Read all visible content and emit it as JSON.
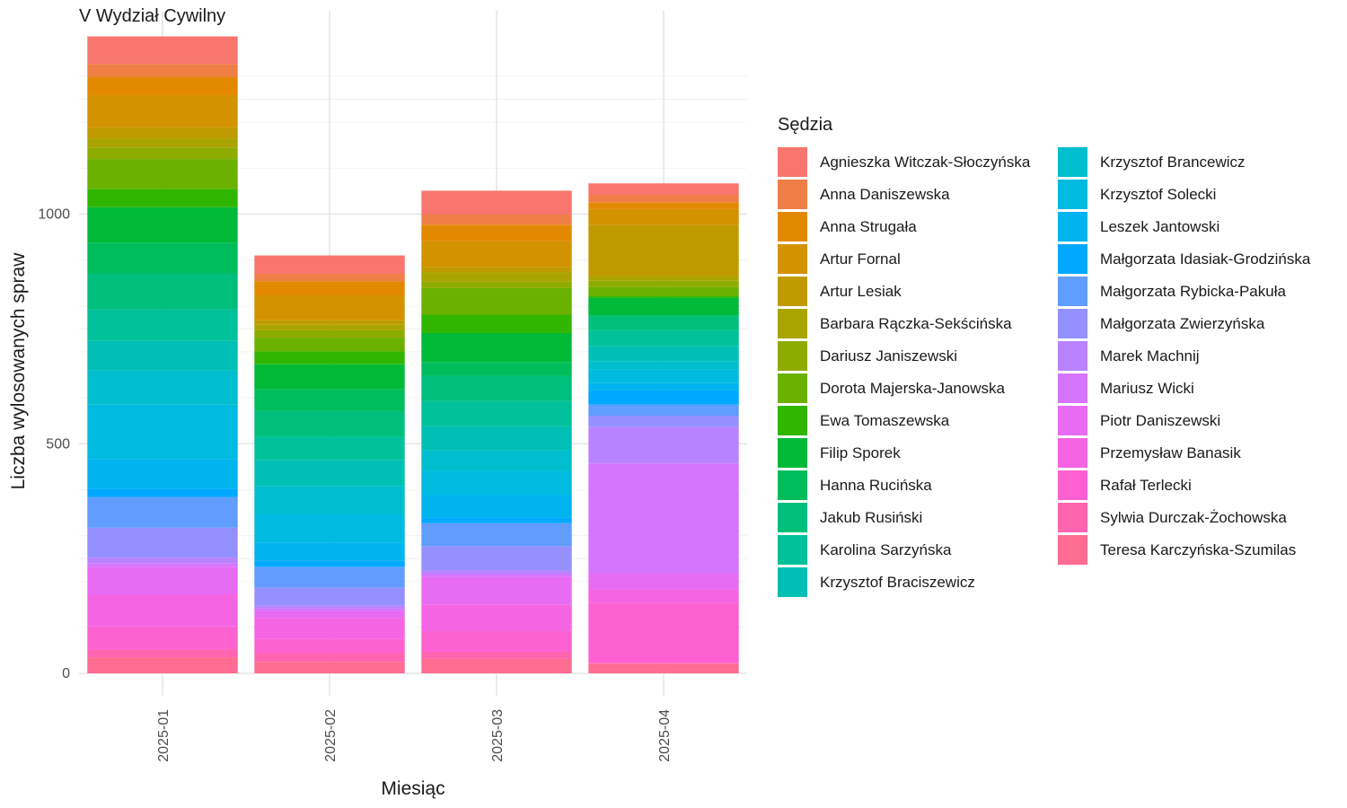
{
  "chart_data": {
    "type": "bar",
    "stacked": true,
    "title": "V Wydział Cywilny",
    "xlabel": "Miesiąc",
    "ylabel": "Liczba wylosowanych spraw",
    "categories": [
      "2025-01",
      "2025-02",
      "2025-03",
      "2025-04"
    ],
    "ylim": [
      0,
      1400
    ],
    "yticks": [
      0,
      500,
      1000
    ],
    "grid": true,
    "legend": {
      "title": "Sędzia",
      "position": "right",
      "columns": 2
    },
    "series": [
      {
        "name": "Agnieszka Witczak-Słoczyńska",
        "color": "#F8766D",
        "values": [
          60,
          40,
          52,
          25
        ]
      },
      {
        "name": "Anna Daniszewska",
        "color": "#EF7F46",
        "values": [
          28,
          16,
          22,
          17
        ]
      },
      {
        "name": "Anna Strugała",
        "color": "#E38900",
        "values": [
          40,
          30,
          36,
          14
        ]
      },
      {
        "name": "Artur Fornal",
        "color": "#D39200",
        "values": [
          70,
          55,
          56,
          35
        ]
      },
      {
        "name": "Artur Lesiak",
        "color": "#C09B00",
        "values": [
          24,
          10,
          12,
          111
        ]
      },
      {
        "name": "Barbara Rączka-Sekścińska",
        "color": "#A9A400",
        "values": [
          20,
          12,
          20,
          10
        ]
      },
      {
        "name": "Dariusz Janiszewski",
        "color": "#8EAB00",
        "values": [
          25,
          16,
          14,
          14
        ]
      },
      {
        "name": "Dorota Majerska-Janowska",
        "color": "#6BB100",
        "values": [
          65,
          30,
          58,
          19
        ]
      },
      {
        "name": "Ewa Tomaszewska",
        "color": "#31B600",
        "values": [
          40,
          28,
          40,
          4
        ]
      },
      {
        "name": "Filip Sporek",
        "color": "#00BA38",
        "values": [
          77,
          54,
          63,
          37
        ]
      },
      {
        "name": "Hanna Rucińska",
        "color": "#00BD5C",
        "values": [
          67,
          48,
          30,
          4
        ]
      },
      {
        "name": "Jakub Rusiński",
        "color": "#00BF7D",
        "values": [
          79,
          56,
          55,
          30
        ]
      },
      {
        "name": "Karolina Sarzyńska",
        "color": "#00C19A",
        "values": [
          68,
          50,
          55,
          35
        ]
      },
      {
        "name": "Krzysztof Braciszewicz",
        "color": "#00C0B5",
        "values": [
          64,
          57,
          52,
          32
        ]
      },
      {
        "name": "Krzysztof Brancewicz",
        "color": "#00BECD",
        "values": [
          75,
          60,
          45,
          18
        ]
      },
      {
        "name": "Krzysztof Solecki",
        "color": "#00BAE0",
        "values": [
          118,
          63,
          52,
          30
        ]
      },
      {
        "name": "Leszek Jantowski",
        "color": "#00B4EF",
        "values": [
          65,
          40,
          50,
          16
        ]
      },
      {
        "name": "Małgorzata Idasiak-Grodzińska",
        "color": "#00A9FF",
        "values": [
          18,
          13,
          12,
          31
        ]
      },
      {
        "name": "Małgorzata Rybicka-Pakuła",
        "color": "#619CFF",
        "values": [
          67,
          45,
          50,
          24
        ]
      },
      {
        "name": "Małgorzata Zwierzyńska",
        "color": "#9590FF",
        "values": [
          65,
          40,
          53,
          24
        ]
      },
      {
        "name": "Marek Machnij",
        "color": "#B983FF",
        "values": [
          12,
          6,
          8,
          80
        ]
      },
      {
        "name": "Mariusz Wicki",
        "color": "#D575FE",
        "values": [
          8,
          5,
          6,
          240
        ]
      },
      {
        "name": "Piotr Daniszewski",
        "color": "#E76BF3",
        "values": [
          60,
          15,
          60,
          34
        ]
      },
      {
        "name": "Przemysław Banasik",
        "color": "#F564E3",
        "values": [
          70,
          46,
          58,
          30
        ]
      },
      {
        "name": "Rafał Terlecki",
        "color": "#FD61D1",
        "values": [
          50,
          30,
          45,
          130
        ]
      },
      {
        "name": "Sylwia Durczak-Żochowska",
        "color": "#FF64B0",
        "values": [
          17,
          20,
          15,
          3
        ]
      },
      {
        "name": "Teresa Karczyńska-Szumilas",
        "color": "#FF6C91",
        "values": [
          35,
          25,
          32,
          20
        ]
      }
    ]
  }
}
